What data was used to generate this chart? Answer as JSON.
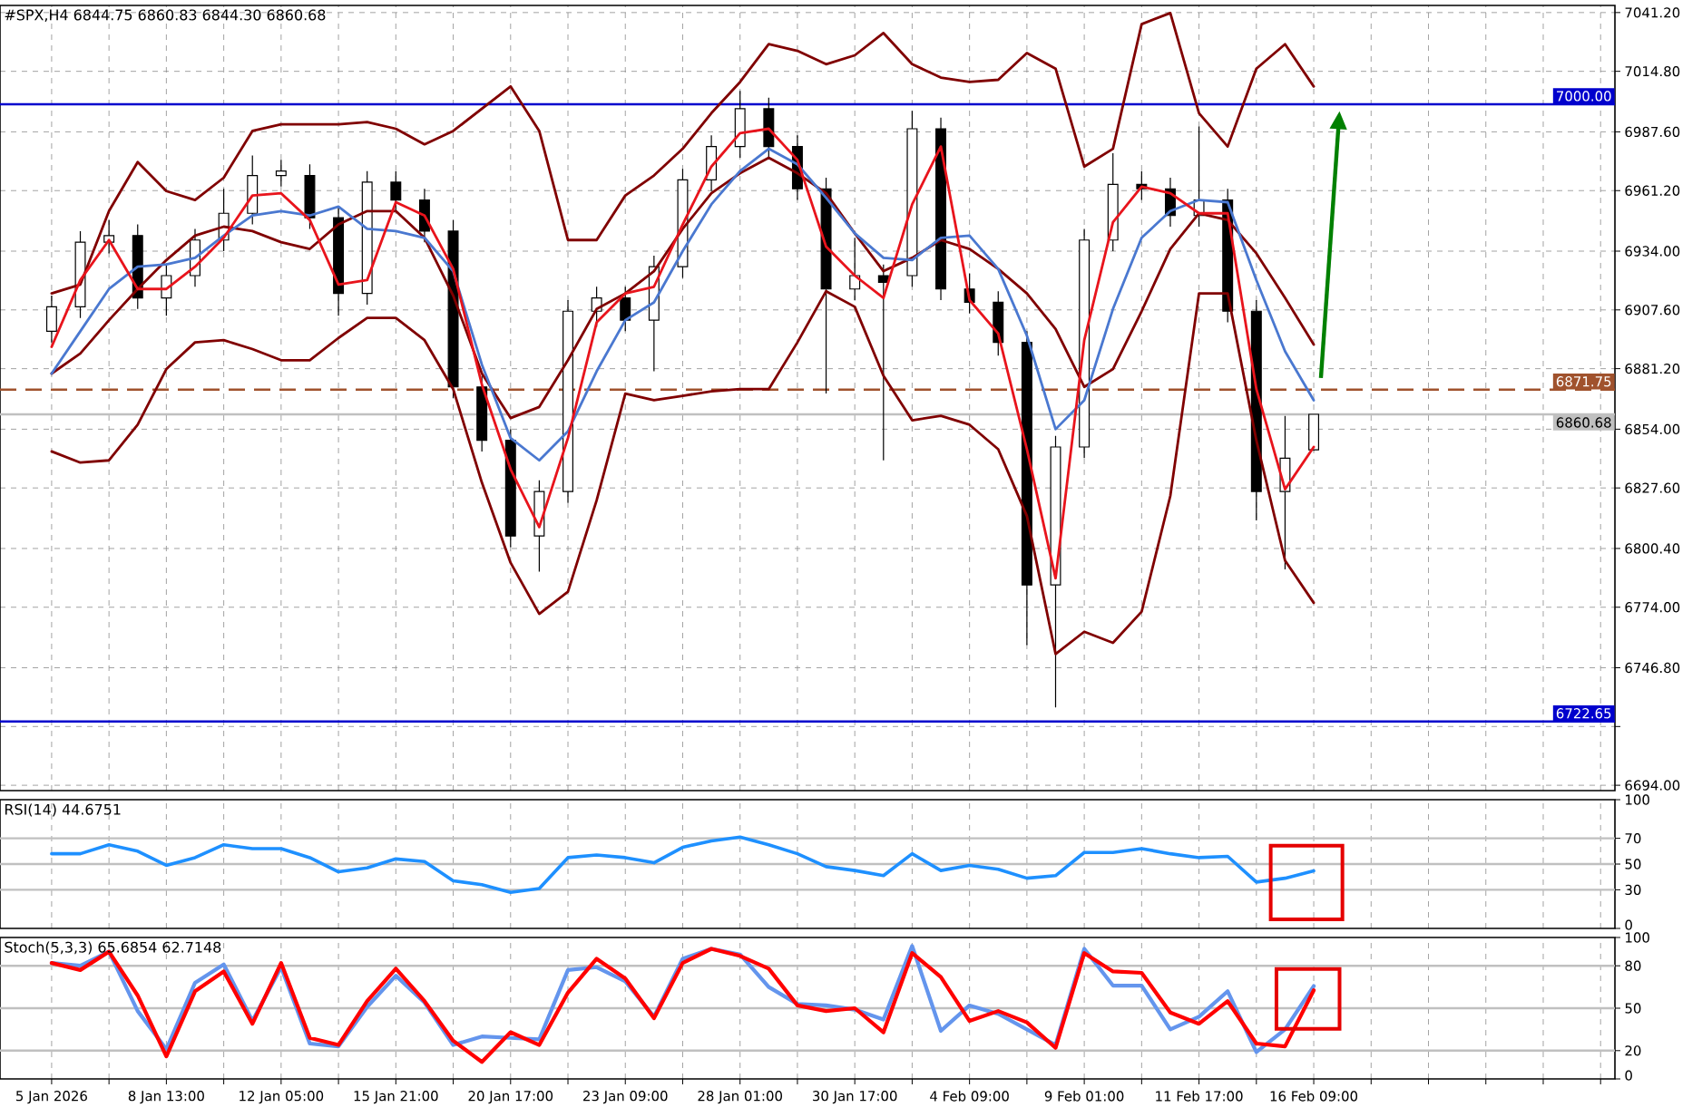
{
  "chart_data": [
    {
      "type": "candlestick",
      "title": "#SPX,H4  6844.75 6860.83 6844.30 6860.68",
      "categories": [
        null,
        null,
        null,
        null,
        null,
        null,
        null,
        null,
        null,
        null,
        null,
        null,
        null,
        null,
        null,
        null,
        null,
        null,
        null,
        null,
        null,
        null,
        null,
        null,
        null,
        null,
        null,
        null,
        null,
        null,
        null,
        null,
        null,
        null,
        null,
        null,
        null,
        null,
        null,
        null,
        null,
        null,
        null,
        null,
        null
      ],
      "ohlc": [
        [
          6898,
          6914,
          6893,
          6909
        ],
        [
          6909,
          6943,
          6904,
          6938
        ],
        [
          6938,
          6948,
          6933,
          6941
        ],
        [
          6941,
          6946,
          6908,
          6913
        ],
        [
          6913,
          6928,
          6905,
          6923
        ],
        [
          6923,
          6944,
          6918,
          6939
        ],
        [
          6939,
          6962,
          6934,
          6951
        ],
        [
          6951,
          6977,
          6946,
          6968
        ],
        [
          6968,
          6975,
          6963,
          6970
        ],
        [
          6968,
          6973,
          6944,
          6949
        ],
        [
          6949,
          6954,
          6905,
          6915
        ],
        [
          6915,
          6970,
          6910,
          6965
        ],
        [
          6965,
          6970,
          6952,
          6957
        ],
        [
          6957,
          6962,
          6938,
          6943
        ],
        [
          6943,
          6948,
          6868,
          6873
        ],
        [
          6873,
          6878,
          6844,
          6849
        ],
        [
          6849,
          6854,
          6801,
          6806
        ],
        [
          6806,
          6831,
          6790,
          6826
        ],
        [
          6826,
          6912,
          6821,
          6907
        ],
        [
          6907,
          6918,
          6900,
          6913
        ],
        [
          6913,
          6918,
          6898,
          6903
        ],
        [
          6903,
          6932,
          6880,
          6927
        ],
        [
          6927,
          6971,
          6922,
          6966
        ],
        [
          6966,
          6986,
          6961,
          6981
        ],
        [
          6981,
          7006,
          6976,
          6998
        ],
        [
          6998,
          7003,
          6976,
          6981
        ],
        [
          6981,
          6986,
          6957,
          6962
        ],
        [
          6962,
          6967,
          6870,
          6917
        ],
        [
          6917,
          6940,
          6912,
          6923
        ],
        [
          6923,
          6928,
          6840,
          6920
        ],
        [
          6923,
          6997,
          6918,
          6989
        ],
        [
          6989,
          6994,
          6912,
          6917
        ],
        [
          6917,
          6924,
          6906,
          6911
        ],
        [
          6911,
          6916,
          6887,
          6893
        ],
        [
          6893,
          6898,
          6757,
          6784
        ],
        [
          6784,
          6851,
          6729,
          6846
        ],
        [
          6846,
          6944,
          6841,
          6939
        ],
        [
          6939,
          6978,
          6934,
          6964
        ],
        [
          6964,
          6970,
          6957,
          6962
        ],
        [
          6962,
          6967,
          6945,
          6950
        ],
        [
          6950,
          6990,
          6945,
          6957
        ],
        [
          6957,
          6962,
          6902,
          6907
        ],
        [
          6907,
          6912,
          6813,
          6826
        ],
        [
          6826,
          6860,
          6791,
          6841
        ],
        [
          6844.75,
          6860.83,
          6844.3,
          6860.68
        ]
      ],
      "series": [
        {
          "type": "line",
          "color": "#800000",
          "values": [
            6915,
            6919,
            6952,
            6974,
            6961,
            6957,
            6967,
            6988,
            6991,
            6991,
            6991,
            6992,
            6989,
            6982,
            6988,
            6998,
            7008,
            6988,
            6939,
            6939,
            6959,
            6968,
            6980,
            6996,
            7010,
            7027,
            7024,
            7018,
            7022,
            7032,
            7018,
            7012,
            7010,
            7011,
            7023,
            7016,
            6972,
            6980,
            7036,
            7041,
            6996,
            6981,
            7016,
            7027,
            7008
          ]
        },
        {
          "type": "line",
          "color": "#800000",
          "values": [
            6879,
            6888,
            6903,
            6917,
            6930,
            6941,
            6945,
            6943,
            6938,
            6935,
            6946,
            6952,
            6952,
            6940,
            6914,
            6879,
            6859,
            6864,
            6885,
            6908,
            6915,
            6925,
            6944,
            6960,
            6969,
            6976,
            6969,
            6960,
            6942,
            6925,
            6931,
            6939,
            6935,
            6926,
            6915,
            6899,
            6873,
            6881,
            6907,
            6935,
            6951,
            6948,
            6933,
            6913,
            6892
          ]
        },
        {
          "type": "line",
          "color": "#800000",
          "values": [
            6844,
            6839,
            6840,
            6856,
            6881,
            6893,
            6894,
            6890,
            6885,
            6885,
            6895,
            6904,
            6904,
            6894,
            6872,
            6830,
            6794,
            6771,
            6781,
            6822,
            6870,
            6867,
            6869,
            6871,
            6872,
            6872,
            6893,
            6916,
            6909,
            6878,
            6858,
            6860,
            6856,
            6845,
            6815,
            6753,
            6763,
            6758,
            6772,
            6824,
            6915,
            6915,
            6849,
            6795,
            6776
          ]
        },
        {
          "type": "line",
          "color": "#4a78d0",
          "values": [
            6879,
            6898,
            6917,
            6927,
            6928,
            6931,
            6941,
            6950,
            6952,
            6950,
            6954,
            6944,
            6943,
            6940,
            6925,
            6883,
            6850,
            6840,
            6853,
            6880,
            6903,
            6911,
            6934,
            6955,
            6970,
            6980,
            6973,
            6958,
            6942,
            6931,
            6930,
            6940,
            6941,
            6926,
            6896,
            6854,
            6867,
            6908,
            6940,
            6952,
            6957,
            6956,
            6921,
            6889,
            6867
          ]
        },
        {
          "type": "line",
          "color": "#e8141c",
          "values": [
            6891,
            6921,
            6939,
            6917,
            6917,
            6927,
            6940,
            6959,
            6960,
            6948,
            6919,
            6921,
            6956,
            6950,
            6926,
            6874,
            6836,
            6810,
            6850,
            6902,
            6915,
            6918,
            6946,
            6972,
            6987,
            6989,
            6975,
            6936,
            6923,
            6913,
            6955,
            6981,
            6912,
            6897,
            6845,
            6787,
            6894,
            6947,
            6963,
            6960,
            6951,
            6951,
            6872,
            6827,
            6846
          ]
        }
      ],
      "ylim": [
        6691.6,
        7044.4
      ],
      "yticks": [
        {
          "value": 7041.2,
          "label": "7041.20"
        },
        {
          "value": 7014.8,
          "label": "7014.80"
        },
        {
          "value": 6987.6,
          "label": "6987.60"
        },
        {
          "value": 6961.2,
          "label": "6961.20"
        },
        {
          "value": 6934,
          "label": "6934.00"
        },
        {
          "value": 6907.6,
          "label": "6907.60"
        },
        {
          "value": 6881.2,
          "label": "6881.20"
        },
        {
          "value": 6854,
          "label": "6854.00"
        },
        {
          "value": 6827.6,
          "label": "6827.60"
        },
        {
          "value": 6800.4,
          "label": "6800.40"
        },
        {
          "value": 6774,
          "label": "6774.00"
        },
        {
          "value": 6746.8,
          "label": "6746.80"
        },
        {
          "value": 6720.4,
          "label": null
        },
        {
          "value": 6694,
          "label": "6694.00"
        }
      ],
      "ref_lines": [
        {
          "axis": "y",
          "value": 7000,
          "label": "7000.00",
          "color": "#0000cd"
        },
        {
          "axis": "y",
          "value": 6871.75,
          "label": "6871.75",
          "color": "#a0522d",
          "line_style": "dashed"
        },
        {
          "axis": "y",
          "value": 6860.68,
          "label": "6860.68",
          "color": "#c0c0c0"
        },
        {
          "axis": "y",
          "value": 6722.65,
          "label": "6722.65",
          "color": "#0000cd"
        }
      ],
      "grid": true,
      "tick_labels": "y"
    },
    {
      "type": "line",
      "title": "RSI(14) 44.6751",
      "categories": [
        null,
        null,
        null,
        null,
        null,
        null,
        null,
        null,
        null,
        null,
        null,
        null,
        null,
        null,
        null,
        null,
        null,
        null,
        null,
        null,
        null,
        null,
        null,
        null,
        null,
        null,
        null,
        null,
        null,
        null,
        null,
        null,
        null,
        null,
        null,
        null,
        null,
        null,
        null,
        null,
        null,
        null,
        null,
        null,
        null
      ],
      "series": [
        {
          "color": "#1e90ff",
          "values": [
            58,
            58,
            65,
            60,
            49,
            55,
            65,
            62,
            62,
            55,
            44,
            47,
            54,
            52,
            37,
            34,
            28,
            31,
            55,
            57,
            55,
            51,
            63,
            68,
            71,
            65,
            58,
            48,
            45,
            41,
            58,
            45,
            49,
            46,
            39,
            41,
            59,
            59,
            62,
            58,
            55,
            56,
            36,
            39,
            44.6751
          ]
        }
      ],
      "ylim": [
        0,
        100
      ],
      "yticks": [
        100,
        70,
        50,
        30,
        0
      ],
      "ref_lines": [
        {
          "axis": "y",
          "value": 70,
          "color": "#c0c0c0"
        },
        {
          "axis": "y",
          "value": 50,
          "color": "#c0c0c0"
        },
        {
          "axis": "y",
          "value": 30,
          "color": "#c0c0c0"
        }
      ],
      "grid": "x",
      "tick_labels": "y"
    },
    {
      "type": "line",
      "title": "Stoch(5,3,3) 65.6854 62.7148",
      "categories": [
        "5 Jan 2026",
        null,
        null,
        null,
        "8 Jan 13:00",
        null,
        null,
        null,
        "12 Jan 05:00",
        null,
        null,
        null,
        "15 Jan 21:00",
        null,
        null,
        null,
        "20 Jan 17:00",
        null,
        null,
        null,
        "23 Jan 09:00",
        null,
        null,
        null,
        "28 Jan 01:00",
        null,
        null,
        null,
        "30 Jan 17:00",
        null,
        null,
        null,
        "4 Feb 09:00",
        null,
        null,
        null,
        "9 Feb 01:00",
        null,
        null,
        null,
        "11 Feb 17:00",
        null,
        null,
        null,
        "16 Feb 09:00"
      ],
      "series": [
        {
          "color": "#6495ed",
          "values": [
            82,
            80,
            90,
            48,
            21,
            68,
            81,
            41,
            79,
            25,
            23,
            51,
            73,
            54,
            24,
            30,
            29,
            28,
            77,
            79,
            69,
            44,
            85,
            92,
            88,
            65,
            53,
            52,
            49,
            42,
            94,
            34,
            52,
            46,
            35,
            24,
            92,
            66,
            66,
            35,
            44,
            62,
            19,
            35,
            65.6854
          ]
        },
        {
          "color": "#ff0000",
          "values": [
            82,
            77,
            90,
            59,
            16,
            62,
            76,
            39,
            82,
            29,
            24,
            55,
            78,
            55,
            27,
            12,
            33,
            24,
            61,
            85,
            71,
            43,
            82,
            92,
            87,
            78,
            52,
            48,
            50,
            33,
            89,
            72,
            41,
            48,
            40,
            22,
            89,
            76,
            75,
            47,
            39,
            55,
            25,
            23,
            62.7148
          ]
        }
      ],
      "ylim": [
        0,
        100
      ],
      "yticks": [
        100,
        80,
        50,
        20,
        0
      ],
      "ref_lines": [
        {
          "axis": "y",
          "value": 80,
          "color": "#c0c0c0"
        },
        {
          "axis": "y",
          "value": 50,
          "color": "#c0c0c0"
        },
        {
          "axis": "y",
          "value": 20,
          "color": "#c0c0c0"
        }
      ],
      "grid": "x"
    }
  ]
}
